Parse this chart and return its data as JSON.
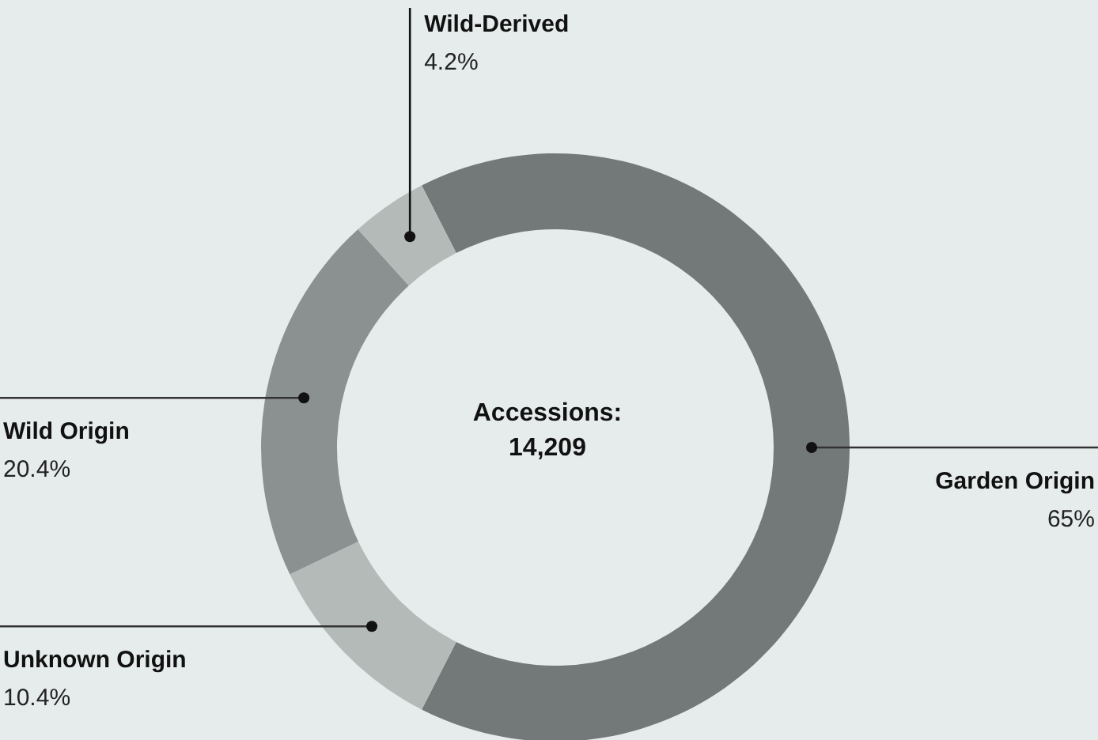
{
  "chart_data": {
    "type": "donut",
    "categories": [
      "Garden Origin",
      "Unknown Origin",
      "Wild Origin",
      "Wild-Derived"
    ],
    "values": [
      65,
      10.4,
      20.4,
      4.2
    ],
    "value_labels": [
      "65%",
      "10.4%",
      "20.4%",
      "4.2%"
    ],
    "colors": [
      "#737878",
      "#b4bab8",
      "#8b9190",
      "#b3bab7"
    ],
    "annotations": [
      "Accessions: 14,209"
    ],
    "legend": false
  }
}
